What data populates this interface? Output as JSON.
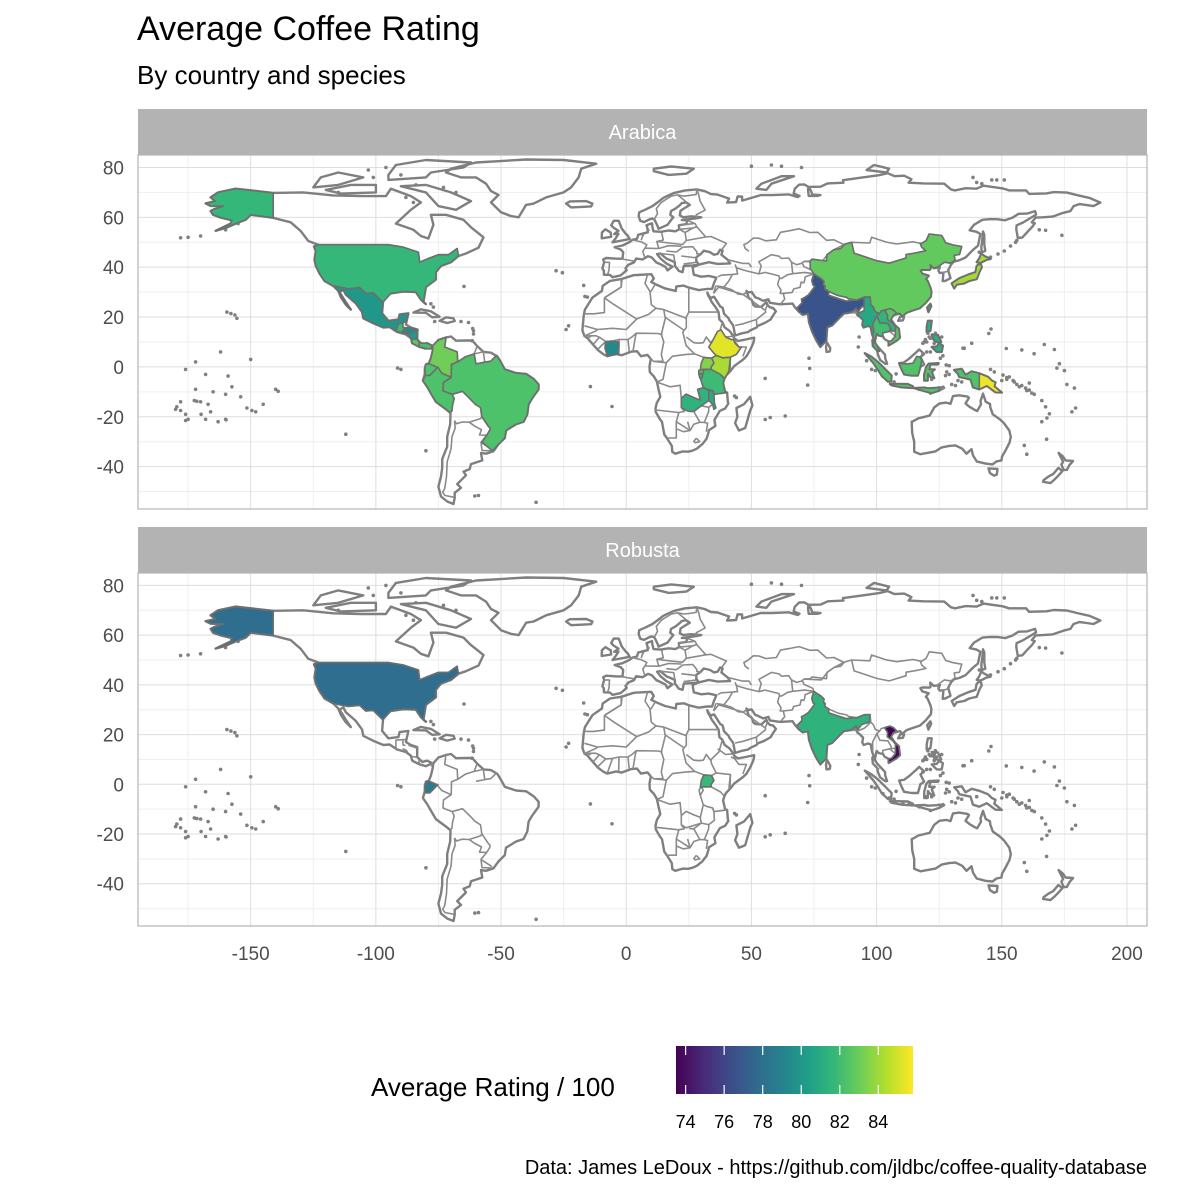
{
  "title": "Average Coffee Rating",
  "subtitle": "By country and species",
  "caption": "Data: James LeDoux - https://github.com/jldbc/coffee-quality-database",
  "legend": {
    "title": "Average Rating / 100",
    "min": 73.5,
    "max": 85.8,
    "ticks": [
      "74",
      "76",
      "78",
      "80",
      "82",
      "84"
    ],
    "tick_values": [
      74,
      76,
      78,
      80,
      82,
      84
    ],
    "palette": [
      "#440154",
      "#482878",
      "#3E4A89",
      "#31688E",
      "#26828E",
      "#1F9E89",
      "#35B779",
      "#6DCD59",
      "#B4DE2C",
      "#FDE725"
    ]
  },
  "axes": {
    "x_ticks": [
      "-150",
      "-100",
      "-50",
      "0",
      "50",
      "100",
      "150",
      "200"
    ],
    "x_values": [
      -150,
      -100,
      -50,
      0,
      50,
      100,
      150,
      200
    ],
    "y_ticks": [
      "80",
      "60",
      "40",
      "20",
      "0",
      "-20",
      "-40"
    ],
    "y_values": [
      80,
      60,
      40,
      20,
      0,
      -20,
      -40
    ],
    "xlim": [
      -195,
      208
    ],
    "ylim": [
      -57,
      85
    ]
  },
  "panels": [
    {
      "label": "Arabica",
      "ratings": [
        {
          "country": "United States",
          "rating": 81.7
        },
        {
          "country": "Mexico",
          "rating": 80.0
        },
        {
          "country": "Guatemala",
          "rating": 81.9
        },
        {
          "country": "Honduras",
          "rating": 79.4
        },
        {
          "country": "Nicaragua",
          "rating": 80.1
        },
        {
          "country": "El Salvador",
          "rating": 81.6
        },
        {
          "country": "Costa Rica",
          "rating": 82.7
        },
        {
          "country": "Panama",
          "rating": 82.2
        },
        {
          "country": "Colombia",
          "rating": 83.1
        },
        {
          "country": "Ecuador",
          "rating": 82.3
        },
        {
          "country": "Peru",
          "rating": 82.3
        },
        {
          "country": "Brazil",
          "rating": 82.3
        },
        {
          "country": "Côte d'Ivoire",
          "rating": 79.3
        },
        {
          "country": "Ethiopia",
          "rating": 85.3
        },
        {
          "country": "Kenya",
          "rating": 84.2
        },
        {
          "country": "Uganda",
          "rating": 83.5
        },
        {
          "country": "Tanzania",
          "rating": 81.9
        },
        {
          "country": "Rwanda",
          "rating": 82.8
        },
        {
          "country": "Burundi",
          "rating": 81.8
        },
        {
          "country": "Malawi",
          "rating": 81.1
        },
        {
          "country": "Zambia",
          "rating": 81.4
        },
        {
          "country": "India",
          "rating": 76.7
        },
        {
          "country": "China",
          "rating": 82.8
        },
        {
          "country": "Myanmar",
          "rating": 80.9
        },
        {
          "country": "Thailand",
          "rating": 82.1
        },
        {
          "country": "Laos",
          "rating": 81.5
        },
        {
          "country": "Vietnam",
          "rating": 82.6
        },
        {
          "country": "Philippines",
          "rating": 81.2
        },
        {
          "country": "Indonesia",
          "rating": 82.4
        },
        {
          "country": "Papua New Guinea",
          "rating": 85.5
        },
        {
          "country": "Japan",
          "rating": 84.1
        },
        {
          "country": "Taiwan",
          "rating": 81.0
        }
      ]
    },
    {
      "label": "Robusta",
      "ratings": [
        {
          "country": "United States",
          "rating": 77.9
        },
        {
          "country": "Ecuador",
          "rating": 78.6
        },
        {
          "country": "Uganda",
          "rating": 81.8
        },
        {
          "country": "India",
          "rating": 81.4
        },
        {
          "country": "Vietnam",
          "rating": 73.6
        }
      ]
    }
  ]
}
